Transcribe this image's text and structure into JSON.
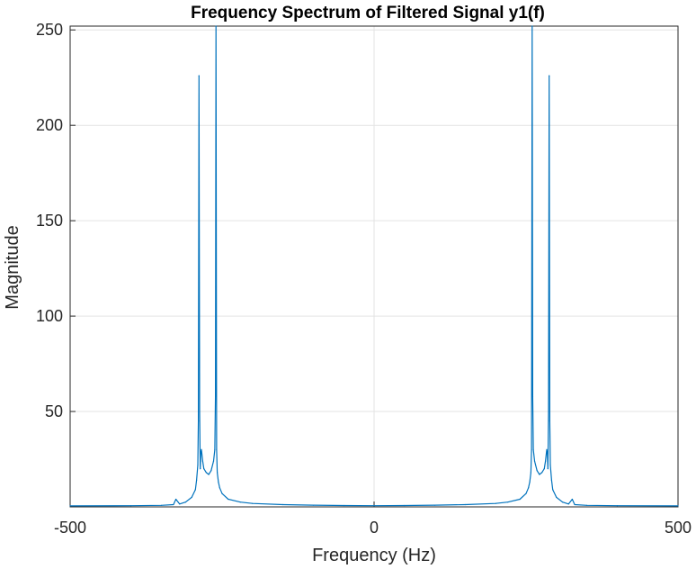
{
  "chart_data": {
    "type": "line",
    "title": "Frequency Spectrum of Filtered Signal y1(f)",
    "xlabel": "Frequency (Hz)",
    "ylabel": "Magnitude",
    "xlim": [
      -500,
      500
    ],
    "ylim": [
      0,
      252
    ],
    "grid": true,
    "x_ticks": [
      -500,
      0,
      500
    ],
    "y_ticks": [
      50,
      100,
      150,
      200,
      250
    ],
    "x_tick_labels": [
      "-500",
      "0",
      "500"
    ],
    "y_tick_labels": [
      "50",
      "100",
      "150",
      "200",
      "250"
    ],
    "series": [
      {
        "color": "#0072BD",
        "x": [
          -500,
          -400,
          -350,
          -330,
          -326,
          -320,
          -310,
          -300,
          -294,
          -292,
          -290,
          -289,
          -288,
          -287,
          -286,
          -285,
          -284,
          -282,
          -280,
          -276,
          -272,
          -268,
          -264,
          -262,
          -261,
          -260,
          -259,
          -258,
          -256,
          -254,
          -250,
          -240,
          -220,
          -200,
          -150,
          -100,
          -50,
          0,
          50,
          100,
          150,
          200,
          220,
          240,
          250,
          254,
          256,
          258,
          259,
          260,
          261,
          262,
          264,
          268,
          272,
          276,
          280,
          282,
          284,
          285,
          286,
          287,
          288,
          289,
          290,
          292,
          294,
          300,
          310,
          320,
          326,
          330,
          350,
          400,
          500
        ],
        "y": [
          0.5,
          0.6,
          0.8,
          1.2,
          4.0,
          1.5,
          2.5,
          5.0,
          9.0,
          14.0,
          22.0,
          45.0,
          226.0,
          50.0,
          20.0,
          28.0,
          30.0,
          24.0,
          20.0,
          18.0,
          17.0,
          19.0,
          24.0,
          30.0,
          58.0,
          252.0,
          30.0,
          18.0,
          13.0,
          10.0,
          7.0,
          4.0,
          2.5,
          1.8,
          1.2,
          0.9,
          0.7,
          0.6,
          0.7,
          0.9,
          1.2,
          1.8,
          2.5,
          4.0,
          7.0,
          10.0,
          13.0,
          18.0,
          30.0,
          252.0,
          58.0,
          30.0,
          24.0,
          19.0,
          17.0,
          18.0,
          20.0,
          24.0,
          30.0,
          28.0,
          20.0,
          50.0,
          226.0,
          45.0,
          22.0,
          14.0,
          9.0,
          5.0,
          2.5,
          1.5,
          4.0,
          1.2,
          0.8,
          0.6,
          0.5
        ]
      }
    ]
  }
}
